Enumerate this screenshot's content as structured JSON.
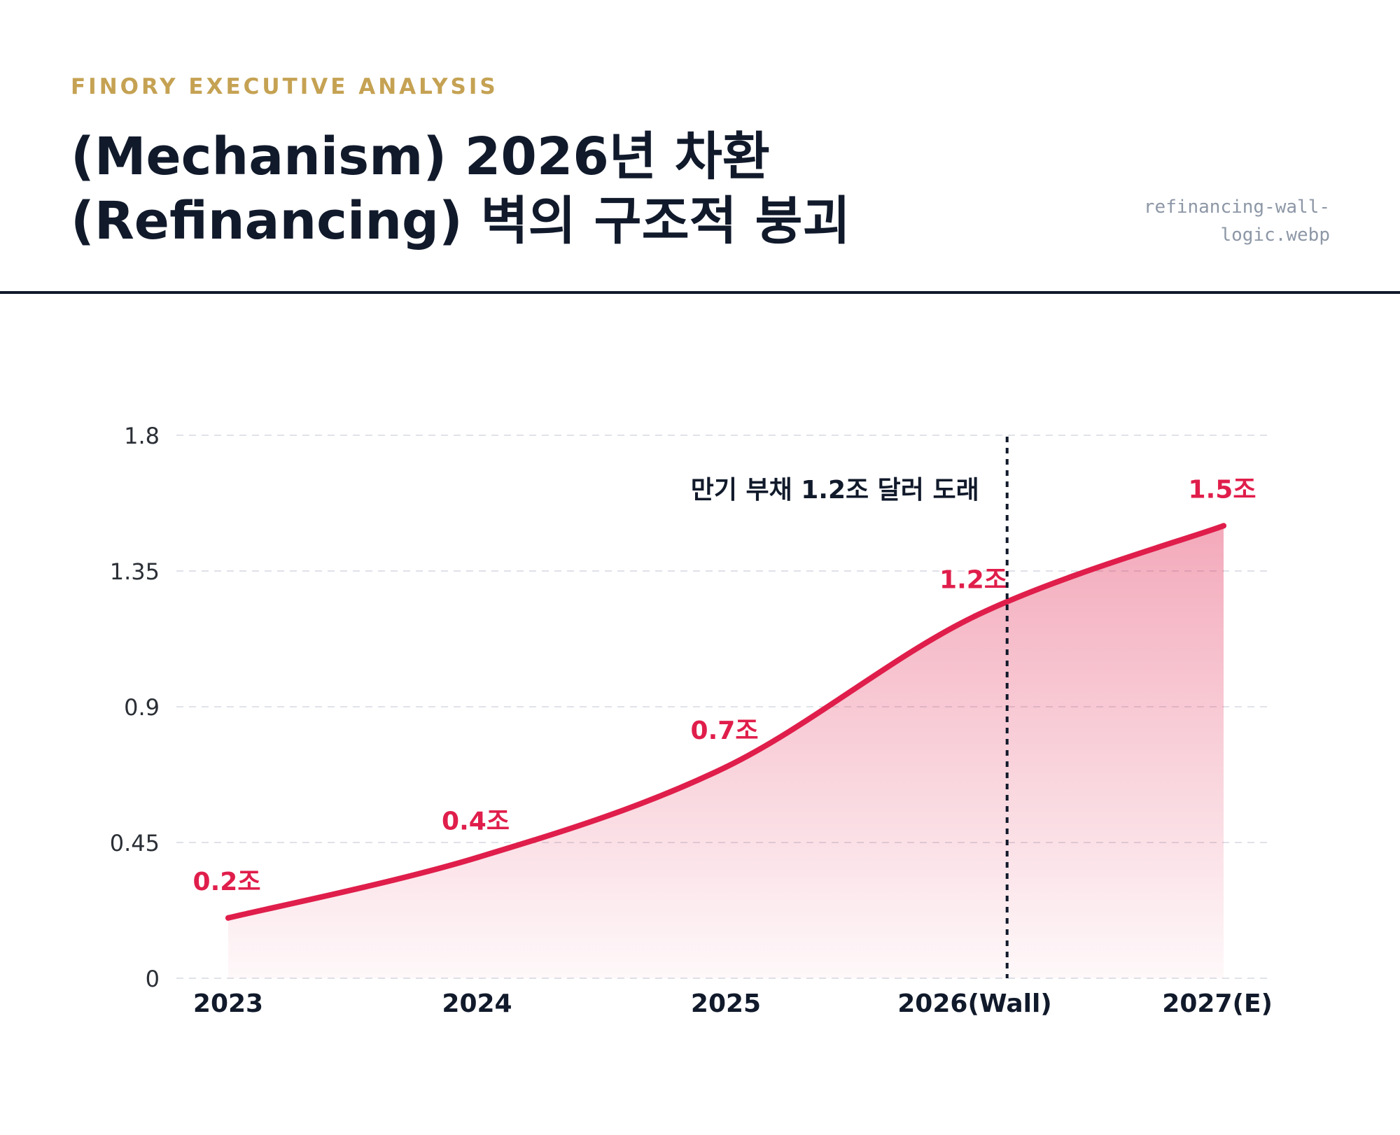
{
  "header": {
    "kicker": "FINORY EXECUTIVE ANALYSIS",
    "title": "(Mechanism) 2026년 차환(Refinancing) 벽의 구조적 붕괴",
    "filename": "refinancing-wall-logic.webp"
  },
  "colors": {
    "accent": "#e01e4b",
    "gold": "#c5a253",
    "ink": "#111a2b"
  },
  "chart_data": {
    "type": "area",
    "categories": [
      "2023",
      "2024",
      "2025",
      "2026(Wall)",
      "2027(E)"
    ],
    "values": [
      0.2,
      0.4,
      0.7,
      1.2,
      1.5
    ],
    "data_labels": [
      "0.2조",
      "0.4조",
      "0.7조",
      "1.2조",
      "1.5조"
    ],
    "yticks": [
      0,
      0.45,
      0.9,
      1.35,
      1.8
    ],
    "ytick_labels": [
      "0",
      "0.45",
      "0.9",
      "1.35",
      "1.8"
    ],
    "ylim": [
      0,
      1.8
    ],
    "grid": true,
    "marker": {
      "x": 3.13,
      "label": "만기 부채 1.2조 달러 도래"
    }
  }
}
